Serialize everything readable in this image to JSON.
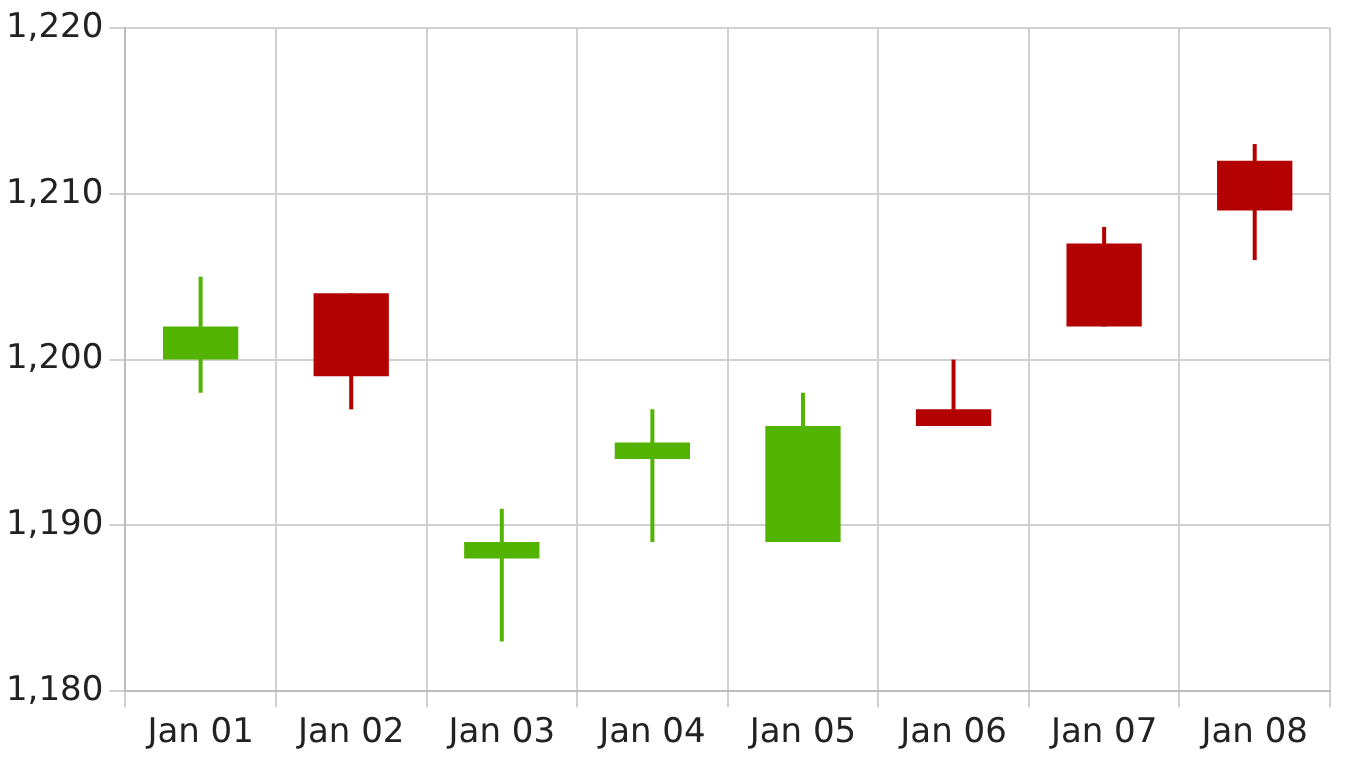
{
  "chart_data": {
    "type": "candlestick",
    "categories": [
      "Jan 01",
      "Jan 02",
      "Jan 03",
      "Jan 04",
      "Jan 05",
      "Jan 06",
      "Jan 07",
      "Jan 08"
    ],
    "ohlc": [
      [
        1200,
        1205,
        1198,
        1202
      ],
      [
        1204,
        1204,
        1197,
        1199
      ],
      [
        1188,
        1191,
        1183,
        1189
      ],
      [
        1194,
        1197,
        1189,
        1195
      ],
      [
        1189,
        1198,
        1189,
        1196
      ],
      [
        1197,
        1200,
        1196,
        1196
      ],
      [
        1207,
        1208,
        1202,
        1202
      ],
      [
        1212,
        1213,
        1206,
        1209
      ]
    ],
    "colors": [
      "#52b300",
      "#b30000",
      "#52b300",
      "#52b300",
      "#52b300",
      "#b30000",
      "#b30000",
      "#b30000"
    ],
    "ylim": [
      1180,
      1220
    ],
    "yticks": [
      {
        "value": 1180,
        "label": "1,180"
      },
      {
        "value": 1190,
        "label": "1,190"
      },
      {
        "value": 1200,
        "label": "1,200"
      },
      {
        "value": 1210,
        "label": "1,210"
      },
      {
        "value": 1220,
        "label": "1,220"
      }
    ],
    "grid": true,
    "legend": false
  }
}
